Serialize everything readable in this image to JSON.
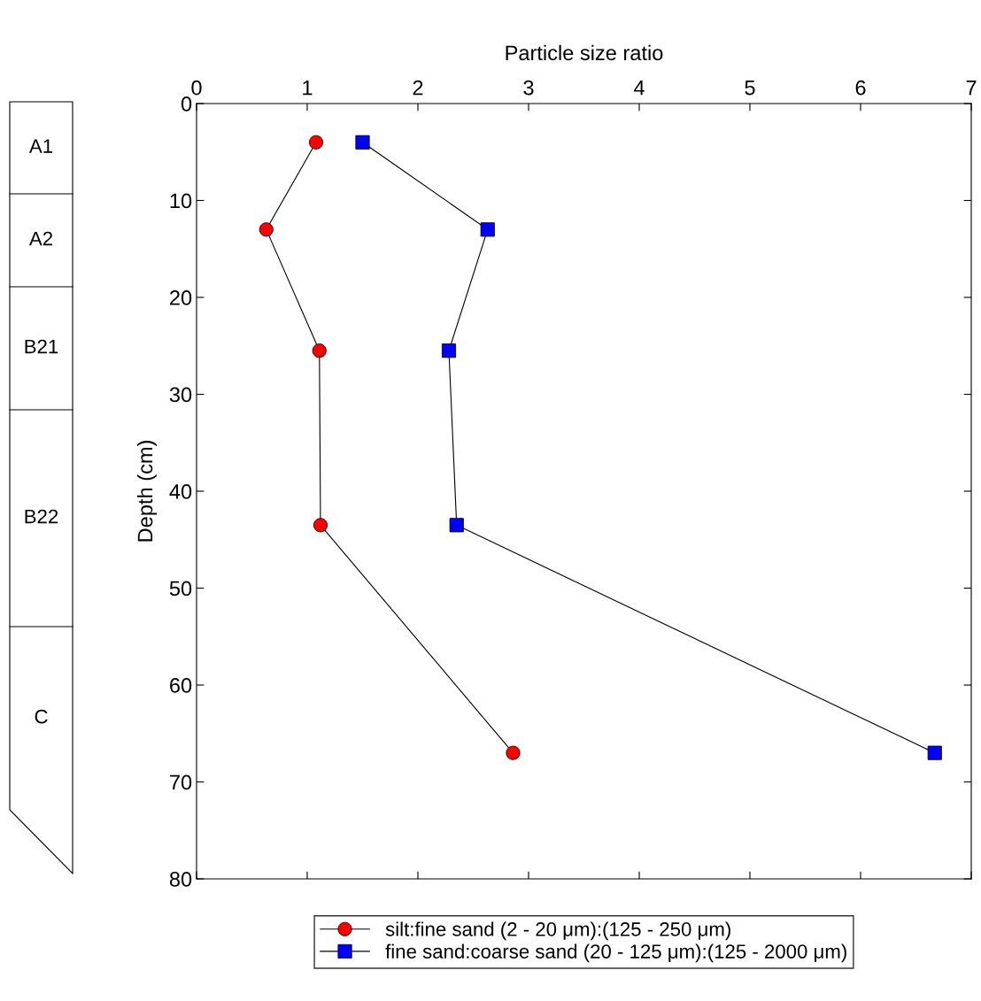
{
  "chart_data": {
    "type": "line",
    "xlabel": "Particle size ratio",
    "ylabel": "Depth (cm)",
    "xlim": [
      0,
      7
    ],
    "xticks": [
      0,
      1,
      2,
      3,
      4,
      5,
      6,
      7
    ],
    "ylim": [
      80,
      0
    ],
    "yticks": [
      0,
      10,
      20,
      30,
      40,
      50,
      60,
      70,
      80
    ],
    "grid": false,
    "legend": "bottom",
    "line_style": "solid",
    "series": [
      {
        "name": "silt:fine sand (2 - 20 μm):(125 - 250 μm)",
        "color": "#ff0000",
        "marker": "circle",
        "x": [
          1.08,
          0.63,
          1.11,
          1.12,
          2.86
        ],
        "values": [
          4,
          13,
          25.5,
          43.5,
          67
        ]
      },
      {
        "name": "fine sand:coarse sand (20 - 125 μm):(125 - 2000 μm)",
        "color": "#0000ff",
        "marker": "square",
        "x": [
          1.5,
          2.63,
          2.28,
          2.35,
          6.67
        ],
        "values": [
          4,
          13,
          25.5,
          43.5,
          67
        ]
      }
    ],
    "annotations": [
      "A1",
      "A2",
      "B21",
      "B22",
      "C"
    ]
  }
}
